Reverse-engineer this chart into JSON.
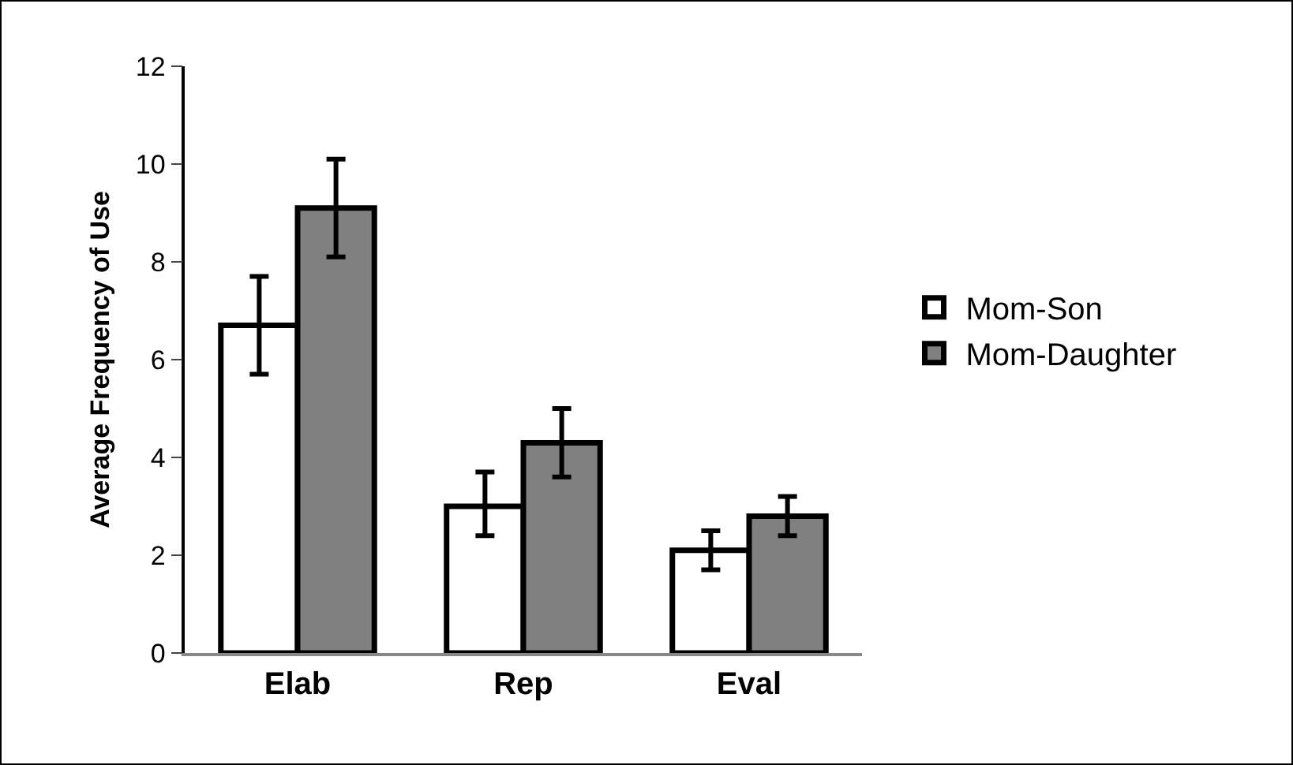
{
  "chart_data": {
    "type": "bar",
    "ylabel": "Average Frequency of Use",
    "categories": [
      "Elab",
      "Rep",
      "Eval"
    ],
    "series": [
      {
        "name": "Mom-Son",
        "color": "#ffffff",
        "values": [
          6.7,
          3.0,
          2.1
        ],
        "errors": [
          [
            5.7,
            7.7
          ],
          [
            2.4,
            3.7
          ],
          [
            1.7,
            2.5
          ]
        ]
      },
      {
        "name": "Mom-Daughter",
        "color": "#808080",
        "values": [
          9.1,
          4.3,
          2.8
        ],
        "errors": [
          [
            8.1,
            10.1
          ],
          [
            3.6,
            5.0
          ],
          [
            2.4,
            3.2
          ]
        ]
      }
    ],
    "ylim": [
      0,
      12
    ],
    "yticks": [
      0,
      2,
      4,
      6,
      8,
      10,
      12
    ],
    "grid": false,
    "legend": "right"
  }
}
